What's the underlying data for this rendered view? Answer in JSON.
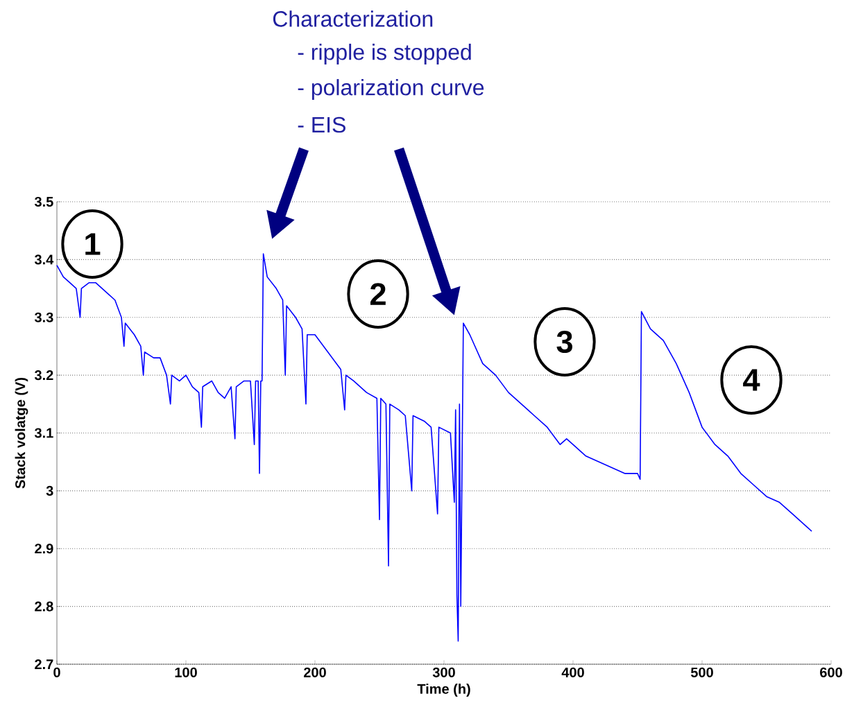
{
  "chart_data": {
    "type": "line",
    "xlabel": "Time (h)",
    "ylabel": "Stack volatge (V)",
    "xlim": [
      0,
      600
    ],
    "ylim": [
      2.7,
      3.5
    ],
    "xticks": [
      0,
      100,
      200,
      300,
      400,
      500,
      600
    ],
    "yticks": [
      2.7,
      2.8,
      2.9,
      3,
      3.1,
      3.2,
      3.3,
      3.4,
      3.5
    ],
    "grid": "y",
    "annotations": [
      "Characterization",
      "- ripple is stopped",
      "- polarization curve",
      "- EIS",
      "1",
      "2",
      "3",
      "4"
    ],
    "series": [
      {
        "color": "#0000ff",
        "x": [
          0,
          5,
          10,
          15,
          18,
          19,
          25,
          30,
          40,
          45,
          50,
          52,
          53,
          60,
          65,
          67,
          68,
          75,
          80,
          85,
          88,
          89,
          95,
          100,
          105,
          110,
          112,
          113,
          120,
          125,
          130,
          135,
          138,
          139,
          145,
          150,
          153,
          154,
          156,
          157,
          158,
          159,
          160,
          163,
          170,
          175,
          177,
          178,
          185,
          190,
          193,
          194,
          200,
          210,
          220,
          223,
          224,
          230,
          240,
          248,
          250,
          251,
          255,
          257,
          258,
          265,
          270,
          275,
          276,
          285,
          290,
          295,
          296,
          305,
          308,
          309,
          310,
          311,
          312,
          313,
          315,
          320,
          330,
          340,
          350,
          360,
          370,
          380,
          390,
          395,
          400,
          410,
          420,
          430,
          440,
          450,
          452,
          453,
          460,
          470,
          480,
          490,
          500,
          510,
          520,
          530,
          540,
          550,
          560,
          570,
          580,
          585
        ],
        "values": [
          3.39,
          3.37,
          3.36,
          3.35,
          3.3,
          3.35,
          3.36,
          3.36,
          3.34,
          3.33,
          3.3,
          3.25,
          3.29,
          3.27,
          3.25,
          3.2,
          3.24,
          3.23,
          3.23,
          3.2,
          3.15,
          3.2,
          3.19,
          3.2,
          3.18,
          3.17,
          3.11,
          3.18,
          3.19,
          3.17,
          3.16,
          3.18,
          3.09,
          3.18,
          3.19,
          3.19,
          3.08,
          3.19,
          3.19,
          3.03,
          3.19,
          3.19,
          3.41,
          3.37,
          3.35,
          3.33,
          3.2,
          3.32,
          3.3,
          3.28,
          3.15,
          3.27,
          3.27,
          3.24,
          3.21,
          3.14,
          3.2,
          3.19,
          3.17,
          3.16,
          2.95,
          3.16,
          3.15,
          2.87,
          3.15,
          3.14,
          3.13,
          3.0,
          3.13,
          3.12,
          3.11,
          2.96,
          3.11,
          3.1,
          2.98,
          3.14,
          2.82,
          2.74,
          3.15,
          2.8,
          3.29,
          3.27,
          3.22,
          3.2,
          3.17,
          3.15,
          3.13,
          3.11,
          3.08,
          3.09,
          3.08,
          3.06,
          3.05,
          3.04,
          3.03,
          3.03,
          3.02,
          3.31,
          3.28,
          3.26,
          3.22,
          3.17,
          3.11,
          3.08,
          3.06,
          3.03,
          3.01,
          2.99,
          2.98,
          2.96,
          2.94,
          2.93
        ]
      }
    ]
  }
}
